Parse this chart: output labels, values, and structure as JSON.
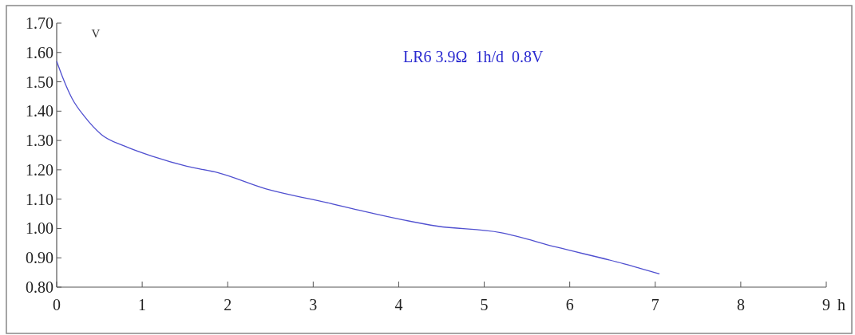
{
  "chart_data": {
    "type": "line",
    "xlabel": "h",
    "ylabel": "V",
    "annotations": [
      "LR6 3.9Ω  1h/d  0.8V"
    ],
    "x": [
      0,
      0.07,
      0.18,
      0.33,
      0.52,
      0.8,
      1.14,
      1.52,
      1.89,
      2.45,
      2.89,
      3.07,
      3.6,
      4.45,
      5.19,
      5.85,
      6.63,
      7.05
    ],
    "series": [
      {
        "color": "#5050d0",
        "values": [
          1.57,
          1.515,
          1.443,
          1.38,
          1.321,
          1.28,
          1.244,
          1.212,
          1.19,
          1.135,
          1.105,
          1.094,
          1.058,
          1.008,
          0.986,
          0.936,
          0.88,
          0.845
        ]
      }
    ],
    "xlim": [
      0,
      9
    ],
    "xticks": [
      0,
      1,
      2,
      3,
      4,
      5,
      6,
      7,
      8,
      9
    ],
    "ylim": [
      0.8,
      1.7
    ],
    "yticks": [
      {
        "value": 0.8,
        "label": "0.80"
      },
      {
        "value": 0.9,
        "label": "0.90"
      },
      {
        "value": 1,
        "label": "1.00"
      },
      {
        "value": 1.1,
        "label": "1.10"
      },
      {
        "value": 1.2,
        "label": "1.20"
      },
      {
        "value": 1.3,
        "label": "1.30"
      },
      {
        "value": 1.4,
        "label": "1.40"
      },
      {
        "value": 1.5,
        "label": "1.50"
      },
      {
        "value": 1.6,
        "label": "1.60"
      },
      {
        "value": 1.7,
        "label": "1.70"
      }
    ],
    "grid": false,
    "marker": "none",
    "line_style": "solid"
  }
}
